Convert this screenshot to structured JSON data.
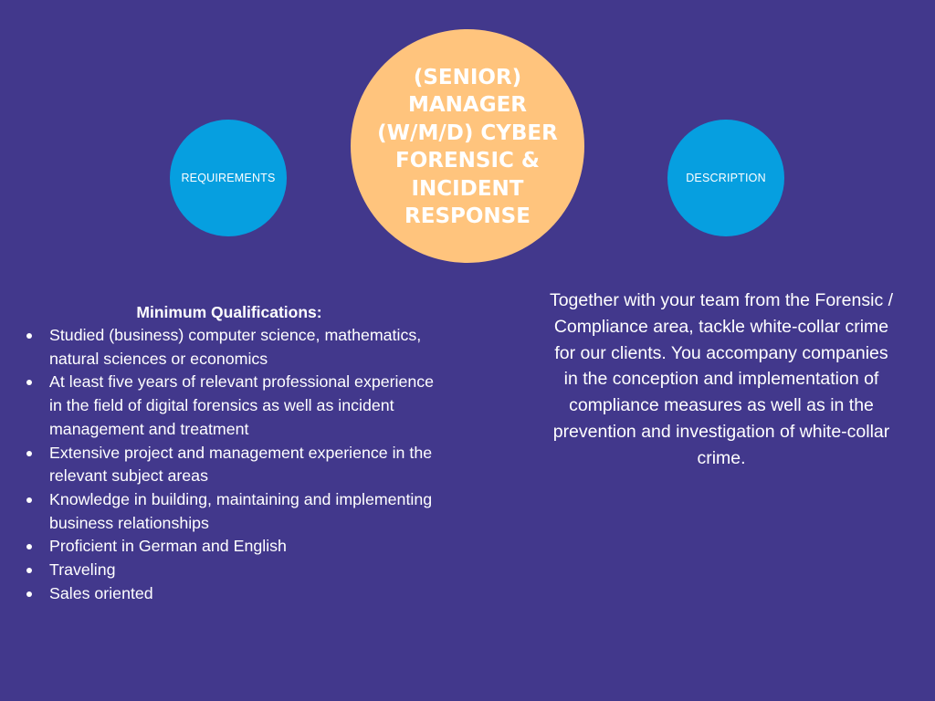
{
  "title": "(SENIOR) MANAGER (W/M/D) CYBER FORENSIC & INCIDENT RESPONSE",
  "requirements_label": "REQUIREMENTS",
  "description_label": "DESCRIPTION",
  "requirements": {
    "heading": "Minimum Qualifications:",
    "items": [
      "Studied (business) computer science, mathematics, natural sciences or economics",
      "At least five years of relevant professional experience in the field of digital forensics as well as incident management and treatment",
      "Extensive project and management experience in the relevant subject areas",
      "Knowledge in building, maintaining and implementing business relationships",
      "Proficient in German and English",
      "Traveling",
      "Sales oriented"
    ]
  },
  "description": "Together with your team from the Forensic / Compliance area, tackle white-collar crime for our clients. You accompany companies in the conception and implementation of compliance measures as well as in the prevention and investigation of white-collar crime.",
  "colors": {
    "background": "#42388c",
    "title_circle": "#ffc47d",
    "label_circles": "#069fe0",
    "text": "#ffffff"
  }
}
